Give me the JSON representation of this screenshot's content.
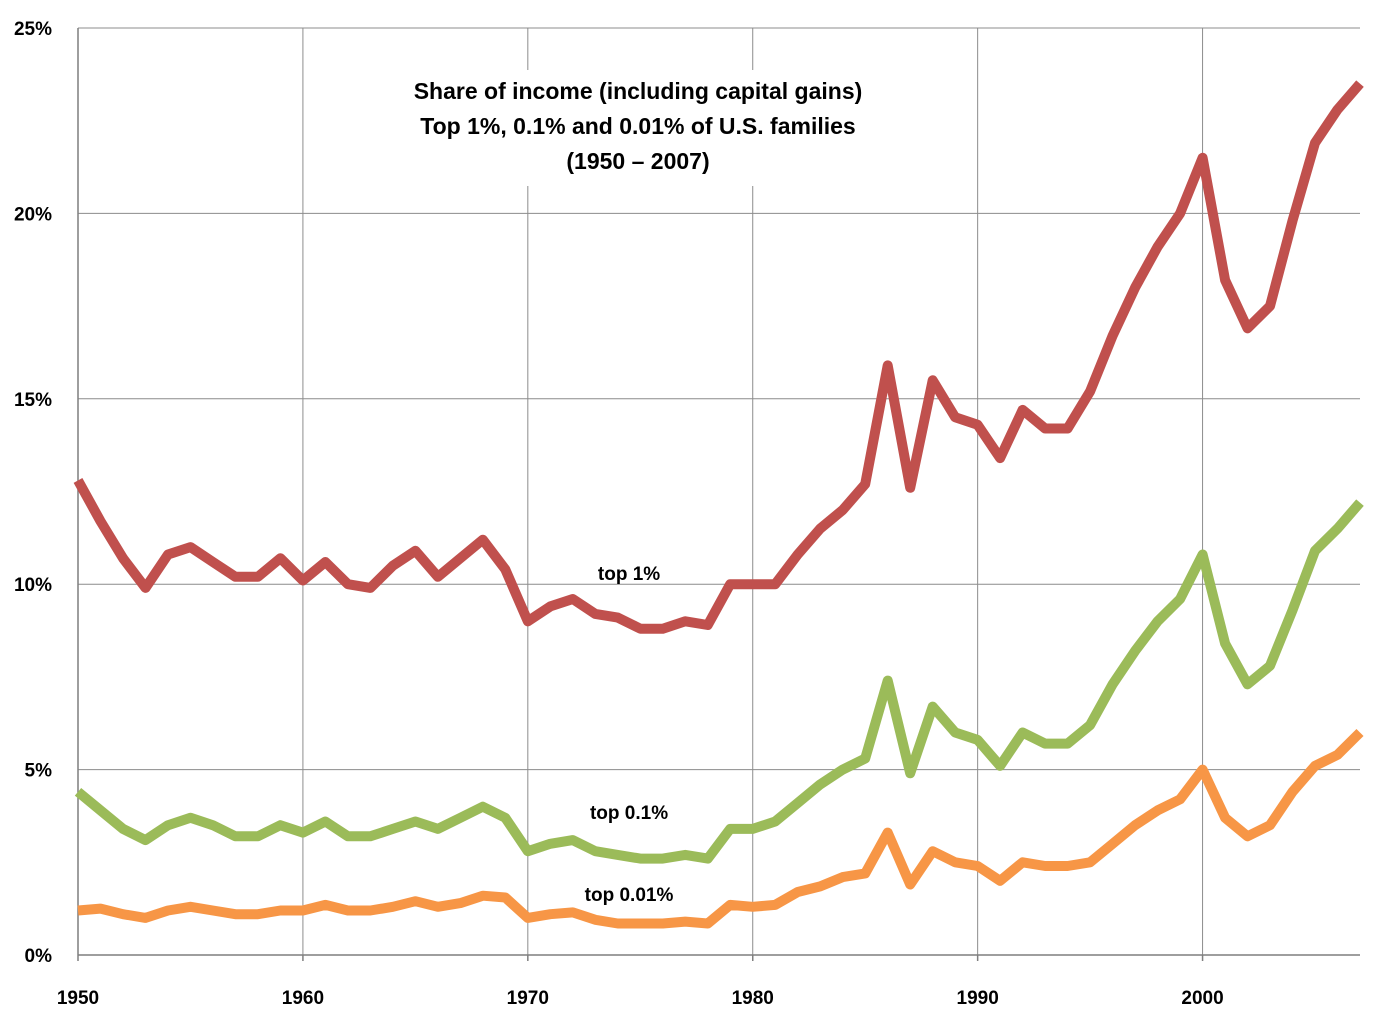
{
  "chart_data": {
    "type": "line",
    "title_lines": [
      "Share of income (including capital gains)",
      "Top 1%, 0.1% and 0.01% of U.S. families",
      "(1950 – 2007)"
    ],
    "xlabel": "",
    "ylabel": "",
    "xlim": [
      1950,
      2007
    ],
    "ylim": [
      0,
      25
    ],
    "x_ticks": [
      1950,
      1960,
      1970,
      1980,
      1990,
      2000
    ],
    "x_tick_labels": [
      "1950",
      "1960",
      "1970",
      "1980",
      "1990",
      "2000"
    ],
    "y_ticks": [
      0,
      5,
      10,
      15,
      20,
      25
    ],
    "y_tick_labels": [
      "0%",
      "5%",
      "10%",
      "15%",
      "20%",
      "25%"
    ],
    "grid": "horizontal and vertical",
    "legend": "none (direct labels on lines)",
    "x": [
      1950,
      1951,
      1952,
      1953,
      1954,
      1955,
      1956,
      1957,
      1958,
      1959,
      1960,
      1961,
      1962,
      1963,
      1964,
      1965,
      1966,
      1967,
      1968,
      1969,
      1970,
      1971,
      1972,
      1973,
      1974,
      1975,
      1976,
      1977,
      1978,
      1979,
      1980,
      1981,
      1982,
      1983,
      1984,
      1985,
      1986,
      1987,
      1988,
      1989,
      1990,
      1991,
      1992,
      1993,
      1994,
      1995,
      1996,
      1997,
      1998,
      1999,
      2000,
      2001,
      2002,
      2003,
      2004,
      2005,
      2006,
      2007
    ],
    "series": [
      {
        "name": "top 1%",
        "color": "#c0504d",
        "values": [
          12.8,
          11.7,
          10.7,
          9.9,
          10.8,
          11.0,
          10.6,
          10.2,
          10.2,
          10.7,
          10.1,
          10.6,
          10.0,
          9.9,
          10.5,
          10.9,
          10.2,
          10.7,
          11.2,
          10.4,
          9.0,
          9.4,
          9.6,
          9.2,
          9.1,
          8.8,
          8.8,
          9.0,
          8.9,
          10.0,
          10.0,
          10.0,
          10.8,
          11.5,
          12.0,
          12.7,
          15.9,
          12.6,
          15.5,
          14.5,
          14.3,
          13.4,
          14.7,
          14.2,
          14.2,
          15.2,
          16.7,
          18.0,
          19.1,
          20.0,
          21.5,
          18.2,
          16.9,
          17.5,
          19.8,
          21.9,
          22.8,
          23.5
        ]
      },
      {
        "name": "top 0.1%",
        "color": "#9bbb59",
        "values": [
          4.4,
          3.9,
          3.4,
          3.1,
          3.5,
          3.7,
          3.5,
          3.2,
          3.2,
          3.5,
          3.3,
          3.6,
          3.2,
          3.2,
          3.4,
          3.6,
          3.4,
          3.7,
          4.0,
          3.7,
          2.8,
          3.0,
          3.1,
          2.8,
          2.7,
          2.6,
          2.6,
          2.7,
          2.6,
          3.4,
          3.4,
          3.6,
          4.1,
          4.6,
          5.0,
          5.3,
          7.4,
          4.9,
          6.7,
          6.0,
          5.8,
          5.1,
          6.0,
          5.7,
          5.7,
          6.2,
          7.3,
          8.2,
          9.0,
          9.6,
          10.8,
          8.4,
          7.3,
          7.8,
          9.3,
          10.9,
          11.5,
          12.2
        ]
      },
      {
        "name": "top 0.01%",
        "color": "#f79646",
        "values": [
          1.2,
          1.25,
          1.1,
          1.0,
          1.2,
          1.3,
          1.2,
          1.1,
          1.1,
          1.2,
          1.2,
          1.35,
          1.2,
          1.2,
          1.3,
          1.45,
          1.3,
          1.4,
          1.6,
          1.55,
          1.0,
          1.1,
          1.15,
          0.95,
          0.85,
          0.85,
          0.85,
          0.9,
          0.85,
          1.35,
          1.3,
          1.35,
          1.7,
          1.85,
          2.1,
          2.2,
          3.3,
          1.9,
          2.8,
          2.5,
          2.4,
          2.0,
          2.5,
          2.4,
          2.4,
          2.5,
          3.0,
          3.5,
          3.9,
          4.2,
          5.0,
          3.7,
          3.2,
          3.5,
          4.4,
          5.1,
          5.4,
          6.0
        ]
      }
    ],
    "annotations": [
      {
        "series": "top 1%",
        "text": "top 1%",
        "x": 1974.5,
        "y": 10.3
      },
      {
        "series": "top 0.1%",
        "text": "top 0.1%",
        "x": 1974.5,
        "y": 3.85
      },
      {
        "series": "top 0.01%",
        "text": "top 0.01%",
        "x": 1974.5,
        "y": 1.65
      }
    ]
  }
}
